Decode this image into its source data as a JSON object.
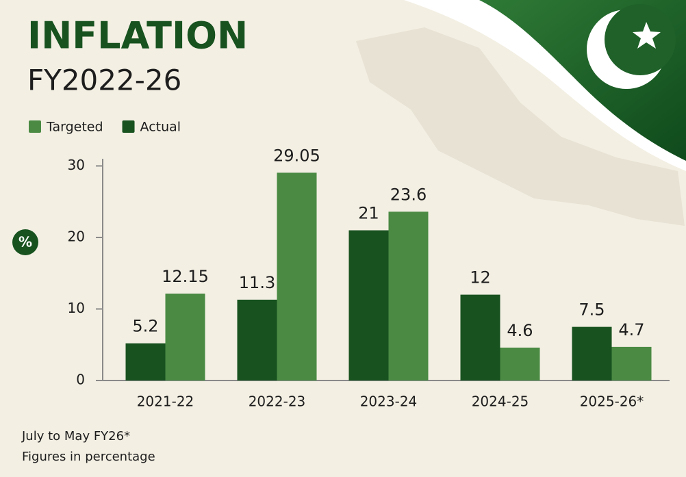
{
  "chart_data": {
    "type": "bar",
    "title": "INFLATION",
    "subtitle": "FY2022-26",
    "y_label": "%",
    "categories": [
      "2021-22",
      "2022-23",
      "2023-24",
      "2024-25",
      "2025-26*"
    ],
    "series": [
      {
        "name": "Targeted",
        "color": "#4a8a43",
        "values": [
          12.15,
          29.05,
          23.6,
          4.6,
          4.7
        ]
      },
      {
        "name": "Actual",
        "color": "#17521f",
        "values": [
          5.2,
          11.3,
          21,
          12,
          7.5
        ]
      }
    ],
    "ylim": [
      0,
      31
    ],
    "yticks": [
      0,
      10,
      20,
      30
    ],
    "notes": [
      "July to May FY26*",
      "Figures in percentage"
    ]
  }
}
